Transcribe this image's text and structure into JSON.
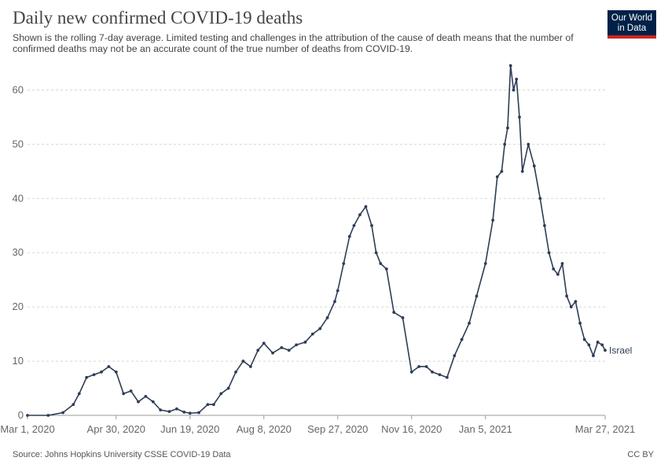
{
  "header": {
    "title": "Daily new confirmed COVID-19 deaths",
    "subtitle": "Shown is the rolling 7-day average. Limited testing and challenges in the attribution of the cause of death means that the number of confirmed deaths may not be an accurate count of the true number of deaths from COVID-19."
  },
  "logo": {
    "line1": "Our World",
    "line2": "in Data",
    "bg_color": "#002147",
    "accent_color": "#ce261e"
  },
  "footer": {
    "source": "Source: Johns Hopkins University CSSE COVID-19 Data",
    "license": "CC BY"
  },
  "chart_data": {
    "type": "line",
    "title": "Daily new confirmed COVID-19 deaths",
    "xlabel": "",
    "ylabel": "",
    "x_range": [
      "2020-03-01",
      "2021-03-27"
    ],
    "ylim": [
      0,
      65
    ],
    "y_ticks": [
      0,
      10,
      20,
      30,
      40,
      50,
      60
    ],
    "x_tick_labels": [
      "Mar 1, 2020",
      "Apr 30, 2020",
      "Jun 19, 2020",
      "Aug 8, 2020",
      "Sep 27, 2020",
      "Nov 16, 2020",
      "Jan 5, 2021",
      "Mar 27, 2021"
    ],
    "x_tick_dates": [
      "2020-03-01",
      "2020-04-30",
      "2020-06-19",
      "2020-08-08",
      "2020-09-27",
      "2020-11-16",
      "2021-01-05",
      "2021-03-27"
    ],
    "grid": true,
    "line_color": "#2e3d55",
    "series": [
      {
        "name": "Israel",
        "x": [
          "2020-03-01",
          "2020-03-15",
          "2020-03-25",
          "2020-04-01",
          "2020-04-05",
          "2020-04-10",
          "2020-04-15",
          "2020-04-20",
          "2020-04-25",
          "2020-04-30",
          "2020-05-05",
          "2020-05-10",
          "2020-05-15",
          "2020-05-20",
          "2020-05-25",
          "2020-05-30",
          "2020-06-05",
          "2020-06-10",
          "2020-06-15",
          "2020-06-19",
          "2020-06-25",
          "2020-07-01",
          "2020-07-05",
          "2020-07-10",
          "2020-07-15",
          "2020-07-20",
          "2020-07-25",
          "2020-07-30",
          "2020-08-04",
          "2020-08-08",
          "2020-08-14",
          "2020-08-20",
          "2020-08-25",
          "2020-08-30",
          "2020-09-05",
          "2020-09-10",
          "2020-09-15",
          "2020-09-20",
          "2020-09-25",
          "2020-09-27",
          "2020-10-01",
          "2020-10-05",
          "2020-10-08",
          "2020-10-12",
          "2020-10-16",
          "2020-10-20",
          "2020-10-23",
          "2020-10-26",
          "2020-10-30",
          "2020-11-04",
          "2020-11-10",
          "2020-11-16",
          "2020-11-21",
          "2020-11-26",
          "2020-11-30",
          "2020-12-05",
          "2020-12-10",
          "2020-12-15",
          "2020-12-20",
          "2020-12-25",
          "2020-12-30",
          "2021-01-05",
          "2021-01-10",
          "2021-01-13",
          "2021-01-16",
          "2021-01-18",
          "2021-01-20",
          "2021-01-22",
          "2021-01-24",
          "2021-01-26",
          "2021-01-28",
          "2021-01-30",
          "2021-02-03",
          "2021-02-07",
          "2021-02-11",
          "2021-02-14",
          "2021-02-17",
          "2021-02-20",
          "2021-02-23",
          "2021-02-26",
          "2021-03-01",
          "2021-03-04",
          "2021-03-07",
          "2021-03-10",
          "2021-03-13",
          "2021-03-16",
          "2021-03-19",
          "2021-03-22",
          "2021-03-25",
          "2021-03-27"
        ],
        "y": [
          0,
          0,
          0.5,
          2,
          4,
          7,
          7.5,
          8,
          9,
          8,
          4,
          4.5,
          2.5,
          3.5,
          2.5,
          1,
          0.7,
          1.2,
          0.6,
          0.4,
          0.5,
          2,
          2,
          4,
          5,
          8,
          10,
          9,
          12,
          13.3,
          11.5,
          12.5,
          12,
          13,
          13.5,
          15,
          16,
          18,
          21,
          23,
          28,
          33,
          35,
          37,
          38.5,
          35,
          30,
          28,
          27,
          19,
          18,
          8,
          9,
          9,
          8,
          7.5,
          7,
          11,
          14,
          17,
          22,
          28,
          36,
          44,
          45,
          50,
          53,
          64.5,
          60,
          62,
          55,
          45,
          50,
          46,
          40,
          35,
          30,
          27,
          26,
          28,
          22,
          20,
          21,
          17,
          14,
          13,
          11,
          13.5,
          13,
          12
        ]
      }
    ]
  }
}
